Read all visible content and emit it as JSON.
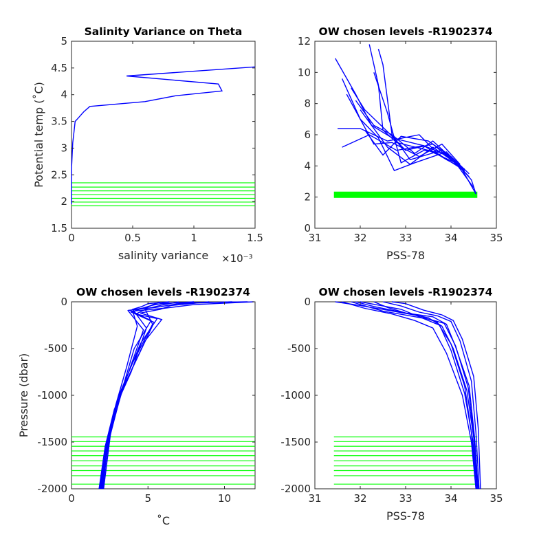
{
  "colors": {
    "profile": "#0000ff",
    "level": "#00ff00",
    "axis": "#262626",
    "title": "#000000"
  },
  "chart_data": [
    {
      "id": "p1",
      "type": "line",
      "title": "Salinity Variance on Theta",
      "xlabel": "salinity variance",
      "x_exponent": "×10⁻³",
      "ylabel": "Potential temp (˚C)",
      "xlim": [
        0,
        0.0015
      ],
      "ylim": [
        1.5,
        5
      ],
      "xticks": [
        0,
        0.0005,
        0.001,
        0.0015
      ],
      "xtick_labels": [
        "0",
        "0.5",
        "1",
        "1.5"
      ],
      "yticks": [
        1.5,
        2,
        2.5,
        3,
        3.5,
        4,
        4.5,
        5
      ],
      "ytick_labels": [
        "1.5",
        "2",
        "2.5",
        "3",
        "3.5",
        "4",
        "4.5",
        "5"
      ],
      "series": [
        {
          "color": "#0000ff",
          "x": [
            0.0,
            0.0,
            1e-05,
            2e-05,
            3e-05,
            5e-05,
            0.0001,
            0.00015,
            0.0006,
            0.00085,
            0.00123,
            0.0012,
            0.00045,
            0.0015
          ],
          "y": [
            1.95,
            2.6,
            3.1,
            3.3,
            3.5,
            3.55,
            3.68,
            3.78,
            3.87,
            3.98,
            4.07,
            4.2,
            4.35,
            4.52
          ]
        }
      ],
      "level_lines": {
        "orientation": "horizontal",
        "values": [
          1.92,
          1.99,
          2.06,
          2.13,
          2.2,
          2.27,
          2.35
        ],
        "span": [
          0,
          0.0015
        ]
      }
    },
    {
      "id": "p2",
      "type": "line",
      "title": "OW chosen levels -R1902374",
      "xlabel": "PSS-78",
      "ylabel": "",
      "xlim": [
        31,
        35
      ],
      "ylim": [
        0,
        12
      ],
      "xticks": [
        31,
        32,
        33,
        34,
        35
      ],
      "xtick_labels": [
        "31",
        "32",
        "33",
        "34",
        "35"
      ],
      "yticks": [
        0,
        2,
        4,
        6,
        8,
        10,
        12
      ],
      "ytick_labels": [
        "0",
        "2",
        "4",
        "6",
        "8",
        "10",
        "12"
      ],
      "series": [
        {
          "color": "#0000ff",
          "x": [
            31.45,
            31.9,
            32.25,
            32.7,
            33.4,
            34.0,
            34.45,
            34.55
          ],
          "y": [
            10.9,
            8.6,
            6.6,
            5.8,
            5.3,
            4.6,
            3.1,
            2.2
          ]
        },
        {
          "color": "#0000ff",
          "x": [
            32.2,
            32.4,
            32.5,
            32.8,
            33.5,
            34.1,
            34.5
          ],
          "y": [
            11.8,
            9.2,
            6.3,
            5.5,
            5.0,
            4.2,
            2.6
          ]
        },
        {
          "color": "#0000ff",
          "x": [
            32.4,
            32.5,
            32.7,
            33.2,
            33.6,
            34.2,
            34.55
          ],
          "y": [
            11.5,
            10.5,
            6.0,
            4.8,
            5.6,
            4.0,
            2.2
          ]
        },
        {
          "color": "#0000ff",
          "x": [
            31.6,
            32.0,
            32.4,
            32.75,
            33.2,
            33.9,
            34.4
          ],
          "y": [
            9.6,
            7.0,
            5.8,
            3.7,
            4.2,
            4.9,
            3.3
          ]
        },
        {
          "color": "#0000ff",
          "x": [
            31.8,
            32.1,
            32.6,
            33.0,
            33.6,
            34.2
          ],
          "y": [
            9.0,
            7.6,
            6.2,
            5.0,
            5.4,
            3.9
          ]
        },
        {
          "color": "#0000ff",
          "x": [
            31.9,
            32.3,
            32.7,
            33.1,
            33.8,
            34.3
          ],
          "y": [
            8.2,
            6.6,
            6.0,
            4.4,
            5.0,
            3.6
          ]
        },
        {
          "color": "#0000ff",
          "x": [
            31.5,
            32.0,
            32.6,
            33.3,
            33.7,
            34.3
          ],
          "y": [
            6.4,
            6.4,
            5.6,
            6.0,
            4.8,
            3.7
          ]
        },
        {
          "color": "#0000ff",
          "x": [
            31.6,
            32.2,
            32.8,
            33.4,
            33.9,
            34.3
          ],
          "y": [
            5.2,
            6.0,
            5.0,
            5.3,
            4.4,
            3.8
          ]
        },
        {
          "color": "#0000ff",
          "x": [
            32.1,
            32.5,
            32.9,
            33.5,
            34.0,
            34.4
          ],
          "y": [
            6.3,
            4.7,
            5.9,
            5.6,
            4.6,
            3.5
          ]
        },
        {
          "color": "#0000ff",
          "x": [
            32.0,
            32.6,
            33.1,
            33.6,
            34.1
          ],
          "y": [
            7.6,
            5.2,
            4.1,
            5.2,
            4.2
          ]
        },
        {
          "color": "#0000ff",
          "x": [
            31.7,
            32.3,
            32.7,
            33.3,
            33.8,
            34.2
          ],
          "y": [
            8.6,
            5.4,
            5.5,
            4.6,
            5.4,
            4.1
          ]
        },
        {
          "color": "#0000ff",
          "x": [
            32.3,
            32.6,
            32.9,
            33.4,
            33.9,
            34.3
          ],
          "y": [
            10.0,
            7.4,
            4.2,
            5.0,
            4.8,
            3.7
          ]
        }
      ],
      "level_bands": [
        {
          "xmin": 31.42,
          "xmax": 34.58,
          "ymin": 1.95,
          "ymax": 2.35
        }
      ]
    },
    {
      "id": "p3",
      "type": "line",
      "title": "OW chosen levels -R1902374",
      "xlabel": "˚C",
      "ylabel": "Pressure (dbar)",
      "xlim": [
        0,
        12
      ],
      "ylim": [
        -2000,
        0
      ],
      "xticks": [
        0,
        5,
        10
      ],
      "xtick_labels": [
        "0",
        "5",
        "10"
      ],
      "yticks": [
        -2000,
        -1500,
        -1000,
        -500,
        0
      ],
      "ytick_labels": [
        "-2000",
        "-1500",
        "-1000",
        "-500",
        "0"
      ],
      "series": [
        {
          "color": "#0000ff",
          "x": [
            11.9,
            8.0,
            6.0,
            4.0,
            4.3,
            3.6,
            2.9,
            2.3,
            1.85
          ],
          "y": [
            0,
            -30,
            -70,
            -100,
            -260,
            -700,
            -1100,
            -1500,
            -2000
          ]
        },
        {
          "color": "#0000ff",
          "x": [
            10.5,
            7.0,
            5.5,
            3.8,
            5.2,
            4.1,
            3.2,
            2.5,
            1.95
          ],
          "y": [
            0,
            -20,
            -60,
            -90,
            -200,
            -500,
            -1000,
            -1450,
            -2000
          ]
        },
        {
          "color": "#0000ff",
          "x": [
            9.0,
            6.5,
            5.8,
            4.5,
            5.9,
            4.8,
            3.3,
            2.4,
            2.05
          ],
          "y": [
            0,
            -40,
            -80,
            -120,
            -190,
            -420,
            -950,
            -1500,
            -2000
          ]
        },
        {
          "color": "#0000ff",
          "x": [
            8.0,
            5.5,
            4.8,
            3.9,
            5.4,
            4.3,
            3.0,
            2.3,
            1.9
          ],
          "y": [
            0,
            -25,
            -60,
            -110,
            -220,
            -600,
            -1050,
            -1500,
            -2000
          ]
        },
        {
          "color": "#0000ff",
          "x": [
            7.0,
            5.9,
            5.0,
            4.2,
            5.6,
            4.5,
            3.5,
            2.6,
            2.1
          ],
          "y": [
            0,
            -35,
            -70,
            -130,
            -180,
            -450,
            -850,
            -1350,
            -2000
          ]
        },
        {
          "color": "#0000ff",
          "x": [
            6.4,
            5.0,
            4.6,
            4.0,
            4.9,
            3.9,
            2.8,
            2.2,
            1.8
          ],
          "y": [
            0,
            -20,
            -50,
            -80,
            -280,
            -750,
            -1150,
            -1550,
            -2000
          ]
        },
        {
          "color": "#0000ff",
          "x": [
            11.5,
            6.0,
            5.2,
            4.8,
            5.3,
            4.0,
            3.1,
            2.45,
            2.0
          ],
          "y": [
            0,
            -15,
            -40,
            -75,
            -240,
            -650,
            -1000,
            -1450,
            -2000
          ]
        },
        {
          "color": "#0000ff",
          "x": [
            5.8,
            5.3,
            4.9,
            3.7,
            4.7,
            3.8,
            2.95,
            2.35,
            1.95
          ],
          "y": [
            0,
            -30,
            -60,
            -95,
            -300,
            -720,
            -1120,
            -1500,
            -2000
          ]
        }
      ],
      "level_lines": {
        "orientation": "horizontal",
        "values": [
          -1445,
          -1495,
          -1545,
          -1595,
          -1645,
          -1700,
          -1755,
          -1805,
          -1860,
          -1950
        ],
        "span": [
          0,
          12
        ]
      }
    },
    {
      "id": "p4",
      "type": "line",
      "title": "OW chosen levels -R1902374",
      "xlabel": "PSS-78",
      "ylabel": "",
      "xlim": [
        31,
        35
      ],
      "ylim": [
        -2000,
        0
      ],
      "xticks": [
        31,
        32,
        33,
        34,
        35
      ],
      "xtick_labels": [
        "31",
        "32",
        "33",
        "34",
        "35"
      ],
      "yticks": [
        -2000,
        -1500,
        -1000,
        -500,
        0
      ],
      "ytick_labels": [
        "-2000",
        "-1500",
        "-1000",
        "-500",
        "0"
      ],
      "series": [
        {
          "color": "#0000ff",
          "x": [
            31.45,
            32.0,
            32.6,
            33.3,
            33.7,
            34.0,
            34.3,
            34.45,
            34.55
          ],
          "y": [
            0,
            -40,
            -90,
            -150,
            -220,
            -450,
            -900,
            -1400,
            -2000
          ]
        },
        {
          "color": "#0000ff",
          "x": [
            31.9,
            32.3,
            32.8,
            33.5,
            33.8,
            34.05,
            34.35,
            34.5,
            34.58
          ],
          "y": [
            0,
            -50,
            -100,
            -170,
            -260,
            -500,
            -950,
            -1450,
            -2000
          ]
        },
        {
          "color": "#0000ff",
          "x": [
            32.3,
            32.6,
            33.0,
            33.6,
            33.9,
            34.1,
            34.4,
            34.52,
            34.6
          ],
          "y": [
            0,
            -60,
            -120,
            -160,
            -240,
            -480,
            -900,
            -1450,
            -2000
          ]
        },
        {
          "color": "#0000ff",
          "x": [
            31.6,
            32.1,
            32.7,
            33.2,
            33.6,
            33.9,
            34.25,
            34.45,
            34.55
          ],
          "y": [
            0,
            -70,
            -130,
            -200,
            -280,
            -550,
            -1000,
            -1500,
            -2000
          ]
        },
        {
          "color": "#0000ff",
          "x": [
            32.5,
            32.9,
            33.3,
            33.7,
            34.0,
            34.2,
            34.45,
            34.55,
            34.62
          ],
          "y": [
            0,
            -45,
            -110,
            -150,
            -210,
            -420,
            -850,
            -1400,
            -2000
          ]
        },
        {
          "color": "#0000ff",
          "x": [
            32.0,
            32.4,
            32.9,
            33.4,
            33.75,
            34.0,
            34.3,
            34.48,
            34.57
          ],
          "y": [
            0,
            -35,
            -80,
            -180,
            -250,
            -520,
            -980,
            -1480,
            -2000
          ]
        },
        {
          "color": "#0000ff",
          "x": [
            31.8,
            32.5,
            33.1,
            33.55,
            33.85,
            34.1,
            34.38,
            34.5,
            34.6
          ],
          "y": [
            0,
            -100,
            -150,
            -190,
            -230,
            -470,
            -920,
            -1430,
            -2000
          ]
        },
        {
          "color": "#0000ff",
          "x": [
            32.7,
            33.0,
            33.4,
            33.8,
            34.05,
            34.25,
            34.5,
            34.6,
            34.65
          ],
          "y": [
            0,
            -20,
            -90,
            -140,
            -200,
            -400,
            -800,
            -1350,
            -2000
          ]
        }
      ],
      "level_lines": {
        "orientation": "horizontal",
        "values": [
          -1445,
          -1495,
          -1545,
          -1595,
          -1645,
          -1700,
          -1755,
          -1805,
          -1860,
          -1950
        ],
        "span": [
          31.42,
          34.58
        ]
      }
    }
  ]
}
